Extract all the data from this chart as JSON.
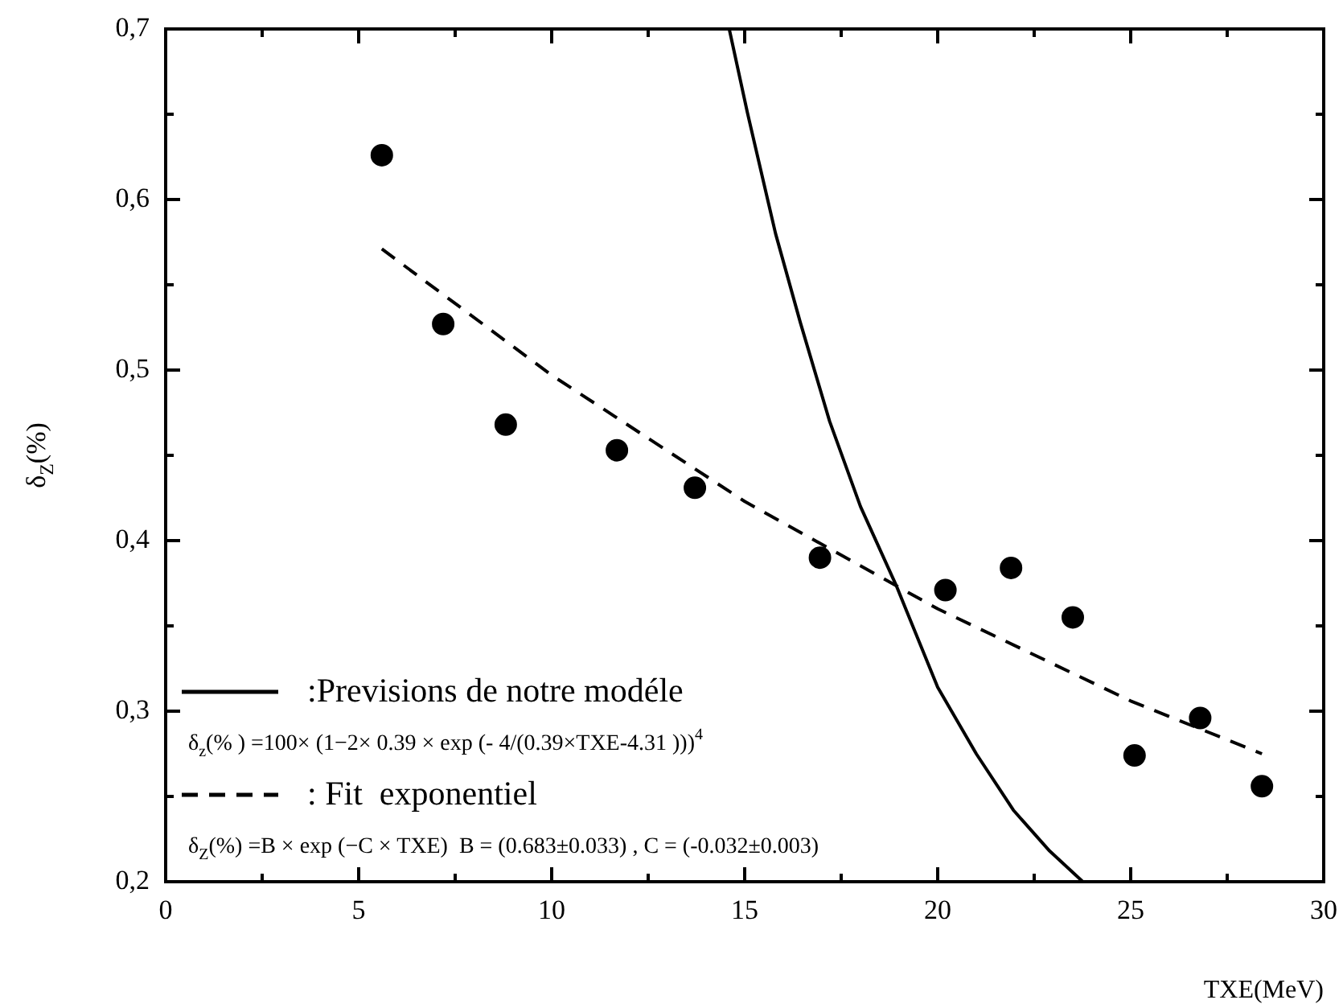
{
  "chart_data": {
    "type": "scatter",
    "xlabel": "TXE(MeV)",
    "ylabel": "δ$_{Z}$(%)",
    "xlim": [
      0,
      30
    ],
    "ylim": [
      0.2,
      0.7
    ],
    "xticks": [
      0,
      {
        "value": 2.5,
        "label": null
      },
      5,
      {
        "value": 7.5,
        "label": null
      },
      10,
      {
        "value": 12.5,
        "label": null
      },
      15,
      {
        "value": 17.5,
        "label": null
      },
      20,
      {
        "value": 22.5,
        "label": null
      },
      25,
      {
        "value": 27.5,
        "label": null
      },
      30
    ],
    "yticks": [
      {
        "value": 0.2,
        "label": "0,2"
      },
      {
        "value": 0.25,
        "label": null
      },
      {
        "value": 0.3,
        "label": "0,3"
      },
      {
        "value": 0.35,
        "label": null
      },
      {
        "value": 0.4,
        "label": "0,4"
      },
      {
        "value": 0.45,
        "label": null
      },
      {
        "value": 0.5,
        "label": "0,5"
      },
      {
        "value": 0.55,
        "label": null
      },
      {
        "value": 0.6,
        "label": "0,6"
      },
      {
        "value": 0.65,
        "label": null
      },
      {
        "value": 0.7,
        "label": "0,7"
      }
    ],
    "grid": false,
    "legend": "bottom left",
    "annotations": [
      "δ$_{z}$(% ) =100× (1−2× 0.39 × exp (- 4/(0.39×TXE-4.31 )))$^{4}$",
      "δ$_{Z}$(%) =B × exp (−C × TXE)  B = (0.683±0.033) , C = (-0.032±0.003)"
    ],
    "series": [
      {
        "type": "scatter",
        "color": "#000000",
        "marker": "circle",
        "x": [
          5.6,
          7.19,
          8.81,
          11.69,
          13.71,
          16.95,
          20.2,
          21.9,
          23.5,
          25.1,
          26.8,
          28.4
        ],
        "values": [
          0.626,
          0.527,
          0.468,
          0.453,
          0.431,
          0.39,
          0.371,
          0.384,
          0.355,
          0.274,
          0.296,
          0.256
        ]
      },
      {
        "type": "line",
        "name": ":Previsions de notre modéle",
        "color": "#000000",
        "line_style": "solid",
        "marker": "none",
        "x": [
          14.6,
          15.07,
          15.8,
          16.44,
          17.2,
          18.0,
          18.92,
          20.0,
          21.0,
          21.96,
          22.9,
          23.76
        ],
        "values": [
          0.7,
          0.651,
          0.58,
          0.528,
          0.47,
          0.42,
          0.374,
          0.314,
          0.275,
          0.242,
          0.218,
          0.2
        ]
      },
      {
        "type": "line",
        "name": ": Fit  exponentiel",
        "color": "#000000",
        "line_style": "dashed",
        "marker": "none",
        "x": [
          5.6,
          10,
          15,
          20,
          25,
          28.4
        ],
        "values": [
          0.571,
          0.497,
          0.423,
          0.36,
          0.306,
          0.275
        ]
      }
    ]
  }
}
